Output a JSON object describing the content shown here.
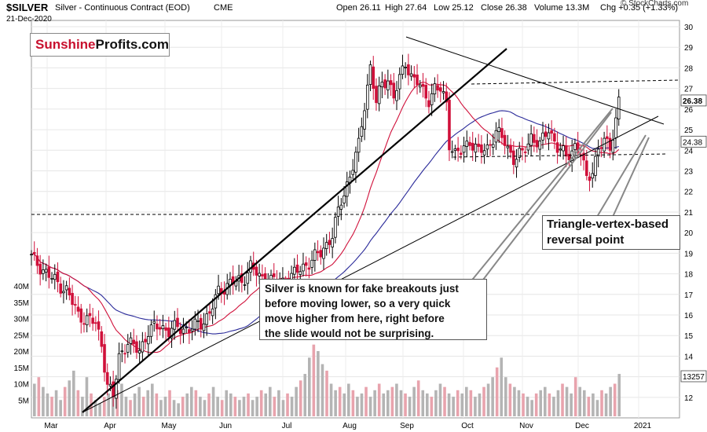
{
  "header": {
    "ticker": "$SILVER",
    "name": "Silver - Continuous Contract (EOD)",
    "exchange": "CME",
    "date": "21-Dec-2020",
    "open_label": "Open",
    "open": "26.11",
    "high_label": "High",
    "high": "27.64",
    "low_label": "Low",
    "low": "25.12",
    "close_label": "Close",
    "close": "26.38",
    "volume_label": "Volume",
    "volume": "13.3M",
    "chg_label": "Chg",
    "chg": "+0.35 (+1.33%)",
    "credit": "© StockCharts.com"
  },
  "logo": {
    "part1": "Sunshine",
    "part2": "Profits.com"
  },
  "annotations": {
    "fake_breakout_lines": [
      "Silver is known for fake breakouts just",
      "before moving lower, so a very quick",
      "move higher from here, right before",
      "the slide would not be surprising."
    ],
    "reversal_lines": [
      "Triangle-vertex-based",
      "reversal point"
    ]
  },
  "colors": {
    "up": "#000000",
    "down": "#d0103a",
    "ma_short": "#d0103a",
    "ma_long": "#2b2b9a",
    "vol_up": "#b4b4b4",
    "vol_down": "#e8a3ad",
    "price_badge": "#ffffff"
  },
  "chart_data": {
    "type": "candlestick",
    "price_axis": {
      "min": 11.5,
      "max": 30,
      "ticks": [
        12,
        13,
        14,
        15,
        16,
        17,
        18,
        19,
        20,
        21,
        22,
        23,
        24,
        25,
        26,
        27,
        28,
        29,
        30
      ]
    },
    "volume_axis": {
      "ticks": [
        "5M",
        "10M",
        "15M",
        "20M",
        "25M",
        "30M",
        "35M",
        "40M"
      ],
      "values": [
        5,
        10,
        15,
        20,
        25,
        30,
        35,
        40
      ]
    },
    "x_labels": [
      "Mar",
      "Apr",
      "May",
      "Jun",
      "Jul",
      "Aug",
      "Sep",
      "Oct",
      "Nov",
      "Dec",
      "2021"
    ],
    "last_price_badge": "26.38",
    "ma_badge": "24.38",
    "volume_badge": "13257",
    "series": [
      {
        "name": "Price",
        "points": [
          [
            0,
            18.8
          ],
          [
            6,
            17.9
          ],
          [
            12,
            17.2
          ],
          [
            16,
            16.0
          ],
          [
            19,
            15.8
          ],
          [
            22,
            15.6
          ],
          [
            24,
            14.6
          ],
          [
            26,
            12.6
          ],
          [
            28,
            12.0
          ],
          [
            30,
            14.0
          ],
          [
            33,
            14.7
          ],
          [
            35,
            14.4
          ],
          [
            37,
            14.3
          ],
          [
            40,
            15.2
          ],
          [
            44,
            15.5
          ],
          [
            47,
            15.2
          ],
          [
            50,
            15.4
          ],
          [
            54,
            15.3
          ],
          [
            58,
            15.6
          ],
          [
            61,
            16.1
          ],
          [
            64,
            17.1
          ],
          [
            68,
            17.6
          ],
          [
            72,
            17.6
          ],
          [
            75,
            18.4
          ],
          [
            78,
            17.8
          ],
          [
            82,
            17.7
          ],
          [
            86,
            17.6
          ],
          [
            88,
            17.8
          ],
          [
            92,
            18.2
          ],
          [
            96,
            18.7
          ],
          [
            99,
            19.0
          ],
          [
            103,
            19.9
          ],
          [
            106,
            21.5
          ],
          [
            109,
            22.8
          ],
          [
            112,
            24.2
          ],
          [
            114,
            26.2
          ],
          [
            116,
            28.1
          ],
          [
            118,
            26.3
          ],
          [
            120,
            27.2
          ],
          [
            122,
            27.5
          ],
          [
            124,
            26.6
          ],
          [
            126,
            27.4
          ],
          [
            128,
            28.3
          ],
          [
            130,
            27.6
          ],
          [
            132,
            27.3
          ],
          [
            134,
            26.8
          ],
          [
            136,
            26.5
          ],
          [
            138,
            27.0
          ],
          [
            140,
            26.9
          ],
          [
            142,
            26.3
          ],
          [
            143,
            24.4
          ],
          [
            145,
            23.8
          ],
          [
            147,
            23.9
          ],
          [
            150,
            24.5
          ],
          [
            153,
            23.9
          ],
          [
            156,
            24.1
          ],
          [
            159,
            24.9
          ],
          [
            162,
            24.4
          ],
          [
            165,
            23.6
          ],
          [
            168,
            23.8
          ],
          [
            171,
            24.7
          ],
          [
            174,
            24.2
          ],
          [
            177,
            25.1
          ],
          [
            180,
            24.1
          ],
          [
            183,
            23.7
          ],
          [
            186,
            24.2
          ],
          [
            188,
            23.8
          ],
          [
            190,
            22.6
          ],
          [
            192,
            23.1
          ],
          [
            194,
            24.0
          ],
          [
            196,
            24.4
          ],
          [
            198,
            24.2
          ],
          [
            200,
            25.5
          ],
          [
            201,
            26.38
          ]
        ]
      },
      {
        "name": "Volume",
        "bars": [
          10,
          12,
          9,
          7,
          6,
          8,
          5,
          9,
          11,
          14,
          8,
          6,
          12,
          7,
          5,
          4,
          6,
          7,
          9,
          8,
          10,
          6,
          5,
          7,
          9,
          6,
          8,
          10,
          7,
          5,
          6,
          8,
          5,
          4,
          6,
          7,
          9,
          8,
          6,
          5,
          7,
          9,
          6,
          5,
          8,
          7,
          6,
          5,
          6,
          7,
          5,
          6,
          8,
          7,
          9,
          6,
          8,
          5,
          7,
          6,
          9,
          11,
          13,
          18,
          22,
          20,
          16,
          14,
          10,
          8,
          9,
          7,
          10,
          8,
          6,
          7,
          9,
          6,
          8,
          10,
          7,
          8,
          9,
          10,
          8,
          7,
          6,
          9,
          11,
          8,
          7,
          6,
          8,
          10,
          9,
          7,
          6,
          8,
          7,
          9,
          8,
          6,
          7,
          9,
          10,
          12,
          15,
          18,
          12,
          10,
          9,
          8,
          7,
          6,
          5,
          7,
          8,
          9,
          7,
          6,
          8,
          10,
          9,
          7,
          12,
          9,
          8,
          6,
          7,
          5,
          8,
          7,
          9,
          10,
          13
        ]
      }
    ]
  }
}
